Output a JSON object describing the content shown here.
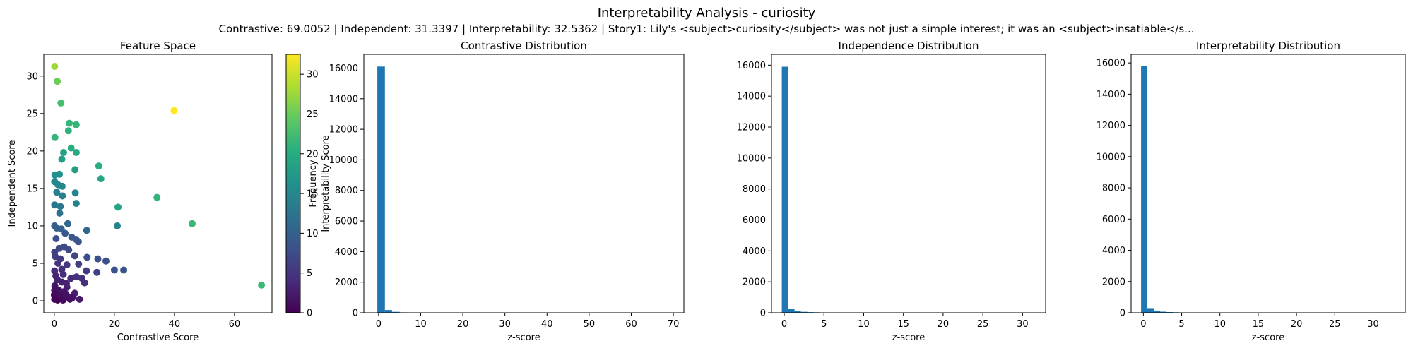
{
  "figure": {
    "title": "Interpretability Analysis - curiosity",
    "subtitle": "Contrastive: 69.0052 | Independent: 31.3397 | Interpretability: 32.5362 | Story1: Lily's <subject>curiosity</subject> was not just a simple interest; it was an <subject>insatiable</s..."
  },
  "colors": {
    "bar": "#1f77b4",
    "axis": "#000000",
    "background": "#ffffff"
  },
  "chart_data": [
    {
      "type": "scatter",
      "title": "Feature Space",
      "xlabel": "Contrastive Score",
      "ylabel": "Independent Score",
      "xlim": [
        -3.5,
        72.5
      ],
      "ylim": [
        -1.6,
        32.9
      ],
      "xticks": [
        0,
        20,
        40,
        60
      ],
      "yticks": [
        0,
        5,
        10,
        15,
        20,
        25,
        30
      ],
      "colorbar": {
        "label": "Interpretability Score",
        "colormap": "viridis",
        "range": [
          0,
          32.5
        ],
        "ticks": [
          0,
          5,
          10,
          15,
          20,
          25,
          30
        ]
      },
      "points": [
        [
          0.1,
          31.3,
          27.6
        ],
        [
          1.0,
          29.3,
          25.1
        ],
        [
          2.2,
          26.4,
          22.6
        ],
        [
          39.9,
          25.4,
          32.5
        ],
        [
          5.0,
          23.7,
          21.4
        ],
        [
          7.3,
          23.5,
          21.2
        ],
        [
          4.7,
          22.7,
          20.8
        ],
        [
          0.2,
          21.8,
          21.2
        ],
        [
          5.6,
          20.4,
          20.4
        ],
        [
          7.3,
          19.8,
          19.8
        ],
        [
          3.1,
          19.8,
          18.6
        ],
        [
          2.5,
          18.9,
          18.2
        ],
        [
          14.8,
          18.0,
          20.4
        ],
        [
          6.9,
          17.5,
          18.2
        ],
        [
          15.5,
          16.3,
          19.1
        ],
        [
          0.2,
          16.8,
          16.0
        ],
        [
          1.7,
          16.9,
          16.2
        ],
        [
          0.1,
          15.9,
          15.0
        ],
        [
          1.2,
          15.5,
          15.0
        ],
        [
          2.6,
          15.3,
          15.2
        ],
        [
          0.8,
          14.5,
          14.0
        ],
        [
          2.7,
          14.0,
          14.0
        ],
        [
          7.0,
          14.4,
          14.6
        ],
        [
          34.2,
          13.8,
          21.1
        ],
        [
          7.3,
          13.0,
          14.0
        ],
        [
          0.1,
          12.8,
          13.0
        ],
        [
          2.0,
          12.6,
          13.0
        ],
        [
          21.2,
          12.5,
          18.8
        ],
        [
          1.8,
          11.7,
          12.0
        ],
        [
          45.9,
          10.3,
          21.7
        ],
        [
          21.0,
          10.0,
          14.6
        ],
        [
          4.5,
          10.3,
          11.0
        ],
        [
          0.1,
          10.0,
          10.0
        ],
        [
          0.8,
          9.7,
          9.7
        ],
        [
          2.3,
          9.6,
          9.5
        ],
        [
          3.6,
          9.0,
          9.2
        ],
        [
          10.8,
          9.4,
          10.8
        ],
        [
          5.8,
          8.5,
          8.8
        ],
        [
          7.2,
          8.2,
          8.7
        ],
        [
          8.0,
          7.9,
          8.6
        ],
        [
          0.6,
          8.3,
          8.0
        ],
        [
          1.6,
          7.0,
          7.1
        ],
        [
          3.3,
          7.2,
          7.5
        ],
        [
          4.8,
          6.8,
          7.2
        ],
        [
          0.1,
          6.5,
          6.3
        ],
        [
          6.8,
          6.0,
          6.8
        ],
        [
          10.9,
          5.8,
          7.8
        ],
        [
          14.5,
          5.6,
          7.9
        ],
        [
          17.2,
          5.3,
          7.9
        ],
        [
          2.0,
          5.6,
          5.4
        ],
        [
          1.2,
          5.0,
          4.9
        ],
        [
          4.2,
          4.8,
          5.2
        ],
        [
          8.1,
          4.9,
          6.1
        ],
        [
          23.1,
          4.1,
          8.4
        ],
        [
          20.0,
          4.1,
          8.2
        ],
        [
          14.2,
          3.8,
          6.3
        ],
        [
          10.7,
          4.0,
          5.5
        ],
        [
          0.1,
          4.0,
          3.9
        ],
        [
          3.0,
          3.5,
          4.1
        ],
        [
          5.5,
          3.0,
          3.9
        ],
        [
          9.2,
          3.0,
          4.6
        ],
        [
          7.4,
          3.2,
          4.6
        ],
        [
          1.0,
          2.8,
          2.9
        ],
        [
          2.6,
          2.5,
          2.9
        ],
        [
          69.0,
          2.1,
          21.7
        ],
        [
          10.1,
          2.4,
          4.4
        ],
        [
          0.2,
          2.0,
          1.9
        ],
        [
          4.2,
          1.8,
          2.5
        ],
        [
          0.1,
          1.4,
          1.4
        ],
        [
          1.5,
          1.4,
          1.5
        ],
        [
          3.1,
          1.2,
          1.9
        ],
        [
          6.8,
          1.0,
          2.7
        ],
        [
          0.0,
          0.8,
          0.7
        ],
        [
          0.9,
          0.7,
          0.8
        ],
        [
          2.2,
          0.6,
          1.1
        ],
        [
          4.6,
          0.5,
          1.7
        ],
        [
          0.1,
          0.2,
          0.2
        ],
        [
          1.1,
          0.1,
          0.4
        ],
        [
          2.9,
          0.1,
          0.8
        ],
        [
          5.2,
          0.2,
          1.4
        ],
        [
          8.4,
          0.2,
          2.2
        ],
        [
          0.5,
          3.3,
          3.2
        ],
        [
          2.5,
          4.2,
          4.3
        ],
        [
          0.3,
          5.9,
          5.7
        ],
        [
          4.0,
          2.3,
          3.1
        ],
        [
          6.0,
          0.4,
          1.6
        ],
        [
          3.9,
          0.9,
          1.6
        ]
      ]
    },
    {
      "type": "bar",
      "title": "Contrastive Distribution",
      "xlabel": "z-score",
      "ylabel": "Frequency",
      "xlim": [
        -3.5,
        72.5
      ],
      "ylim": [
        0,
        16900
      ],
      "xticks": [
        0,
        10,
        20,
        30,
        40,
        50,
        60,
        70
      ],
      "yticks": [
        0,
        2000,
        4000,
        6000,
        8000,
        10000,
        12000,
        14000,
        16000
      ],
      "bins": [
        [
          -0.3,
          1.5,
          16100
        ],
        [
          1.5,
          3.2,
          180
        ],
        [
          3.2,
          5.0,
          60
        ],
        [
          5.0,
          6.7,
          30
        ],
        [
          6.7,
          8.5,
          12
        ],
        [
          8.5,
          10.2,
          6
        ],
        [
          10.2,
          12.0,
          4
        ],
        [
          12.0,
          13.7,
          3
        ],
        [
          13.7,
          15.5,
          3
        ],
        [
          15.5,
          17.2,
          2
        ],
        [
          19.0,
          20.7,
          2
        ],
        [
          20.7,
          22.5,
          2
        ],
        [
          22.5,
          24.2,
          1
        ],
        [
          33.0,
          34.7,
          1
        ],
        [
          39.9,
          41.7,
          1
        ],
        [
          45.2,
          47.0,
          1
        ],
        [
          67.9,
          69.7,
          1
        ]
      ]
    },
    {
      "type": "bar",
      "title": "Independence Distribution",
      "xlabel": "z-score",
      "ylabel": "",
      "xlim": [
        -1.6,
        32.9
      ],
      "ylim": [
        0,
        16700
      ],
      "xticks": [
        0,
        5,
        10,
        15,
        20,
        25,
        30
      ],
      "yticks": [
        0,
        2000,
        4000,
        6000,
        8000,
        10000,
        12000,
        14000,
        16000
      ],
      "bins": [
        [
          -0.3,
          0.5,
          15900
        ],
        [
          0.5,
          1.3,
          260
        ],
        [
          1.3,
          2.1,
          100
        ],
        [
          2.1,
          2.9,
          60
        ],
        [
          2.9,
          3.7,
          40
        ],
        [
          3.7,
          4.5,
          30
        ],
        [
          4.5,
          5.3,
          20
        ],
        [
          5.3,
          6.1,
          12
        ],
        [
          6.1,
          6.9,
          9
        ],
        [
          6.9,
          7.7,
          7
        ],
        [
          7.7,
          8.5,
          6
        ],
        [
          8.5,
          9.3,
          6
        ],
        [
          9.3,
          10.1,
          6
        ],
        [
          10.1,
          10.9,
          3
        ],
        [
          12.4,
          13.2,
          3
        ],
        [
          13.2,
          14.0,
          3
        ],
        [
          14.0,
          14.8,
          3
        ],
        [
          14.8,
          15.6,
          3
        ],
        [
          15.6,
          16.4,
          3
        ],
        [
          16.4,
          17.2,
          2
        ],
        [
          17.2,
          18.0,
          2
        ],
        [
          18.6,
          19.4,
          2
        ],
        [
          19.4,
          20.2,
          2
        ],
        [
          20.2,
          21.0,
          1
        ],
        [
          21.6,
          22.4,
          1
        ],
        [
          22.4,
          23.2,
          1
        ],
        [
          23.2,
          24.0,
          2
        ],
        [
          25.2,
          26.0,
          1
        ],
        [
          26.2,
          27.0,
          1
        ],
        [
          29.0,
          29.8,
          1
        ],
        [
          30.6,
          31.4,
          1
        ]
      ]
    },
    {
      "type": "bar",
      "title": "Interpretability Distribution",
      "xlabel": "z-score",
      "ylabel": "",
      "xlim": [
        -1.6,
        34.2
      ],
      "ylim": [
        0,
        16550
      ],
      "xticks": [
        0,
        5,
        10,
        15,
        20,
        25,
        30
      ],
      "yticks": [
        0,
        2000,
        4000,
        6000,
        8000,
        10000,
        12000,
        14000,
        16000
      ],
      "bins": [
        [
          -0.3,
          0.5,
          15800
        ],
        [
          0.5,
          1.4,
          300
        ],
        [
          1.4,
          2.2,
          140
        ],
        [
          2.2,
          3.0,
          70
        ],
        [
          3.0,
          3.9,
          45
        ],
        [
          3.9,
          4.7,
          30
        ],
        [
          4.7,
          5.6,
          20
        ],
        [
          5.6,
          6.4,
          12
        ],
        [
          6.4,
          7.2,
          9
        ],
        [
          7.2,
          8.1,
          8
        ],
        [
          8.1,
          8.9,
          6
        ],
        [
          8.9,
          9.8,
          5
        ],
        [
          9.8,
          10.6,
          4
        ],
        [
          10.6,
          11.4,
          3
        ],
        [
          12.3,
          13.1,
          3
        ],
        [
          13.1,
          14.0,
          3
        ],
        [
          14.0,
          14.8,
          3
        ],
        [
          14.8,
          15.6,
          3
        ],
        [
          15.6,
          16.5,
          3
        ],
        [
          18.2,
          19.0,
          2
        ],
        [
          19.0,
          19.9,
          2
        ],
        [
          19.9,
          20.7,
          3
        ],
        [
          20.7,
          21.6,
          3
        ],
        [
          21.6,
          22.4,
          2
        ],
        [
          25.0,
          25.8,
          1
        ],
        [
          27.5,
          28.4,
          1
        ],
        [
          32.1,
          32.9,
          1
        ]
      ]
    }
  ]
}
